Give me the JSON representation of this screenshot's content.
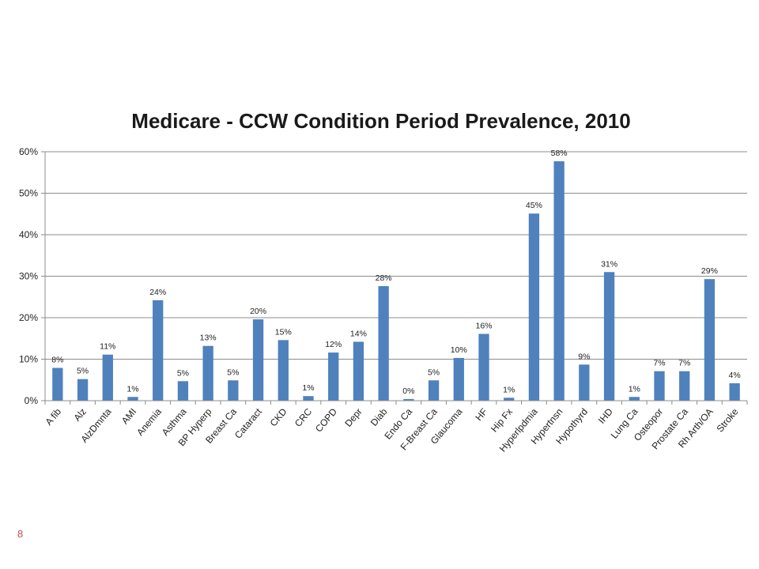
{
  "page_number": "8",
  "colors": {
    "bar": "#4f81bd",
    "grid": "#8c8c8c",
    "axis": "#8c8c8c"
  },
  "chart_data": {
    "type": "bar",
    "title": "Medicare - CCW Condition Period Prevalence, 2010",
    "xlabel": "",
    "ylabel": "",
    "ylim": [
      0,
      60
    ],
    "y_ticks": [
      "0%",
      "10%",
      "20%",
      "30%",
      "40%",
      "50%",
      "60%"
    ],
    "grid": true,
    "legend": "none",
    "categories": [
      "A fib",
      "Alz",
      "AlzDmnta",
      "AMI",
      "Anemia",
      "Asthma",
      "BP Hyperp",
      "Breast Ca",
      "Cataract",
      "CKD",
      "CRC",
      "COPD",
      "Depr",
      "Diab",
      "Endo Ca",
      "F-Breast Ca",
      "Glaucoma",
      "HF",
      "Hip Fx",
      "Hyperlpdmia",
      "Hypertnsn",
      "Hypothyrd",
      "IHD",
      "Lung Ca",
      "Osteopor",
      "Prostate Ca",
      "Rh Arth/OA",
      "Stroke"
    ],
    "values": [
      7.9,
      5.2,
      11.1,
      0.9,
      24.2,
      4.7,
      13.2,
      4.9,
      19.6,
      14.6,
      1.1,
      11.6,
      14.2,
      27.6,
      0.4,
      4.9,
      10.3,
      16.1,
      0.7,
      45.1,
      57.7,
      8.7,
      31.0,
      0.9,
      7.1,
      7.1,
      29.3,
      4.2
    ],
    "data_labels": [
      "8%",
      "5%",
      "11%",
      "1%",
      "24%",
      "5%",
      "13%",
      "5%",
      "20%",
      "15%",
      "1%",
      "12%",
      "14%",
      "28%",
      "0%",
      "5%",
      "10%",
      "16%",
      "1%",
      "45%",
      "58%",
      "9%",
      "31%",
      "1%",
      "7%",
      "7%",
      "29%",
      "4%"
    ]
  }
}
